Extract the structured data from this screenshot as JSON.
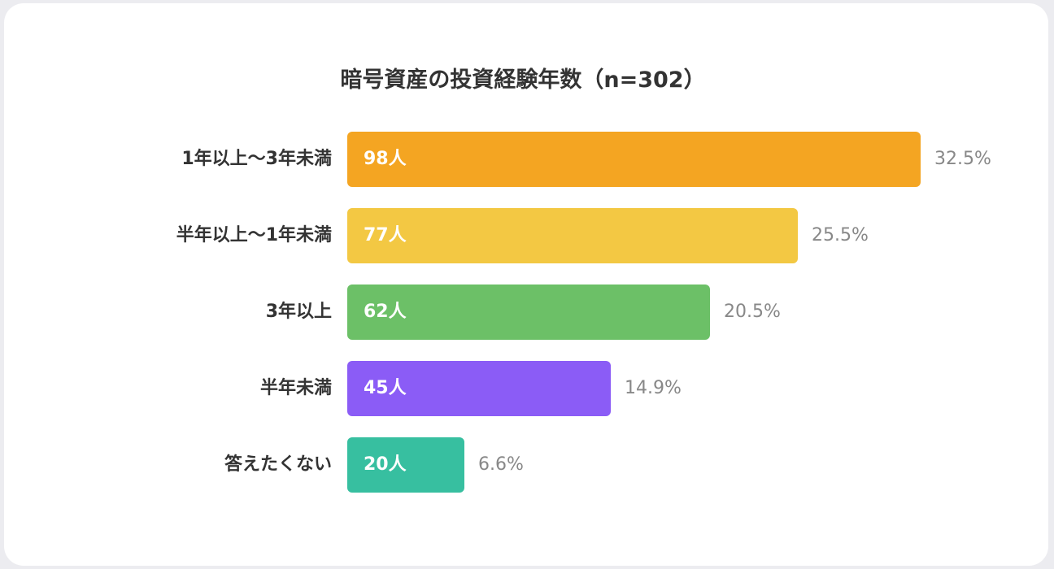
{
  "chart_data": {
    "type": "bar",
    "orientation": "horizontal",
    "title": "暗号資産の投資経験年数（n=302）",
    "categories": [
      "1年以上〜3年未満",
      "半年以上〜1年未満",
      "3年以上",
      "半年未満",
      "答えたくない"
    ],
    "values": [
      98,
      77,
      62,
      45,
      20
    ],
    "value_labels": [
      "98人",
      "77人",
      "62人",
      "45人",
      "20人"
    ],
    "percent_labels": [
      "32.5%",
      "25.5%",
      "20.5%",
      "14.9%",
      "6.6%"
    ],
    "colors": [
      "#f4a522",
      "#f3c843",
      "#6cc067",
      "#8b5cf6",
      "#37bfa0"
    ],
    "xlim": [
      0,
      98
    ],
    "grid": false,
    "legend": false
  }
}
